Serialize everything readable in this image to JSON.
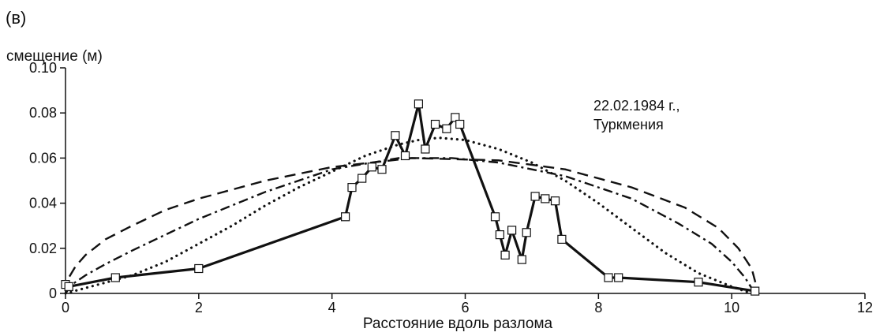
{
  "chart_data": {
    "type": "line",
    "panel_label": "(в)",
    "ylabel": "смещение (м)",
    "xlabel": "Расстояние вдоль разлома",
    "annotation": [
      "22.02.1984 г.,",
      "Туркмения"
    ],
    "xlim": [
      0,
      12
    ],
    "ylim": [
      0,
      0.1
    ],
    "x_ticks": [
      0,
      2,
      4,
      6,
      8,
      10,
      12
    ],
    "x_tick_labels": [
      "0",
      "2",
      "4",
      "6",
      "8",
      "10",
      "12"
    ],
    "y_ticks": [
      0,
      0.02,
      0.04,
      0.06,
      0.08,
      0.1
    ],
    "y_tick_labels": [
      "0",
      "0.02",
      "0.04",
      "0.06",
      "0.08",
      "0.10"
    ],
    "grid": false,
    "color": "#111111",
    "series": [
      {
        "style": "solid-with-square-markers",
        "x": [
          0.0,
          0.05,
          0.75,
          2.0,
          4.2,
          4.3,
          4.45,
          4.6,
          4.75,
          4.95,
          5.1,
          5.3,
          5.4,
          5.55,
          5.72,
          5.85,
          5.92,
          6.45,
          6.52,
          6.6,
          6.7,
          6.85,
          6.92,
          7.05,
          7.2,
          7.35,
          7.45,
          8.15,
          8.3,
          9.5,
          10.35
        ],
        "y": [
          0.004,
          0.003,
          0.007,
          0.011,
          0.034,
          0.047,
          0.051,
          0.056,
          0.055,
          0.07,
          0.061,
          0.084,
          0.064,
          0.075,
          0.073,
          0.078,
          0.075,
          0.034,
          0.026,
          0.017,
          0.028,
          0.015,
          0.027,
          0.043,
          0.042,
          0.041,
          0.024,
          0.007,
          0.007,
          0.005,
          0.001
        ]
      },
      {
        "style": "dashed",
        "x": [
          0.0,
          0.05,
          0.15,
          0.3,
          0.6,
          1.0,
          1.5,
          2.0,
          3.0,
          4.0,
          5.2,
          6.5,
          7.5,
          8.5,
          9.3,
          9.8,
          10.1,
          10.3,
          10.4
        ],
        "y": [
          0.0,
          0.007,
          0.012,
          0.017,
          0.024,
          0.03,
          0.037,
          0.042,
          0.05,
          0.056,
          0.06,
          0.059,
          0.055,
          0.047,
          0.038,
          0.029,
          0.02,
          0.011,
          0.0
        ]
      },
      {
        "style": "dash-dot",
        "x": [
          0.0,
          0.1,
          0.3,
          0.6,
          1.0,
          1.5,
          2.0,
          3.0,
          4.0,
          5.0,
          5.8,
          6.5,
          7.5,
          8.5,
          9.2,
          9.7,
          10.0,
          10.2,
          10.35
        ],
        "y": [
          0.0,
          0.004,
          0.008,
          0.013,
          0.019,
          0.026,
          0.033,
          0.045,
          0.055,
          0.06,
          0.06,
          0.058,
          0.052,
          0.042,
          0.031,
          0.022,
          0.014,
          0.007,
          0.0
        ]
      },
      {
        "style": "dotted",
        "x": [
          0.0,
          0.5,
          1.0,
          1.5,
          2.0,
          2.5,
          3.0,
          3.5,
          4.0,
          4.5,
          5.0,
          5.3,
          5.6,
          6.0,
          6.5,
          7.0,
          7.5,
          8.0,
          8.5,
          9.0,
          9.5,
          10.0,
          10.3
        ],
        "y": [
          0.0,
          0.004,
          0.008,
          0.014,
          0.022,
          0.03,
          0.039,
          0.047,
          0.054,
          0.061,
          0.066,
          0.068,
          0.069,
          0.068,
          0.064,
          0.058,
          0.05,
          0.04,
          0.029,
          0.018,
          0.009,
          0.003,
          0.0
        ]
      }
    ]
  }
}
